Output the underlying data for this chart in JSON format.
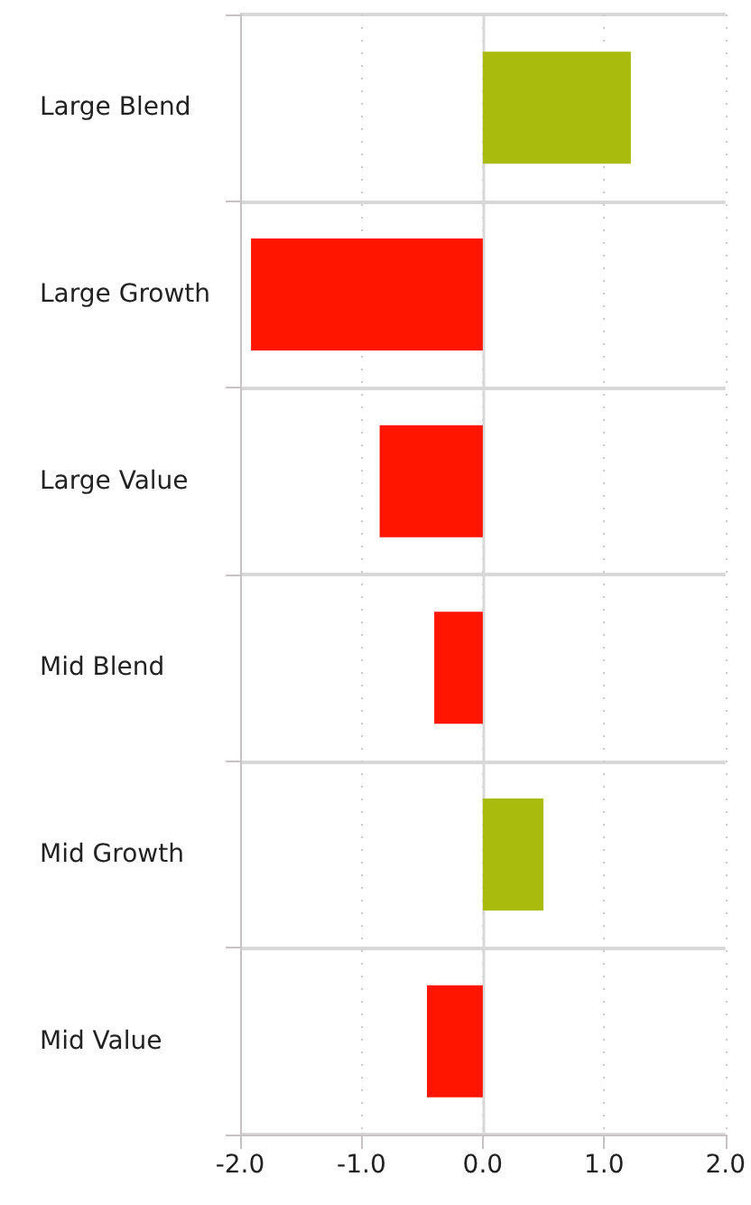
{
  "chart_data": {
    "type": "bar",
    "orientation": "horizontal",
    "categories": [
      "Large Blend",
      "Large Growth",
      "Large Value",
      "Mid Blend",
      "Mid Growth",
      "Mid Value"
    ],
    "values": [
      1.22,
      -1.91,
      -0.85,
      -0.4,
      0.5,
      -0.46
    ],
    "colors": [
      "#a9bb0c",
      "#ff1500",
      "#ff1500",
      "#ff1500",
      "#a9bb0c",
      "#ff1500"
    ],
    "xlim": [
      -2,
      2
    ],
    "xticks": [
      {
        "value": -2,
        "label": "-2.0"
      },
      {
        "value": -1,
        "label": "-1.0"
      },
      {
        "value": 0,
        "label": "0.0"
      },
      {
        "value": 1,
        "label": "1.0"
      },
      {
        "value": 2,
        "label": "2.0"
      }
    ],
    "grid": true
  }
}
